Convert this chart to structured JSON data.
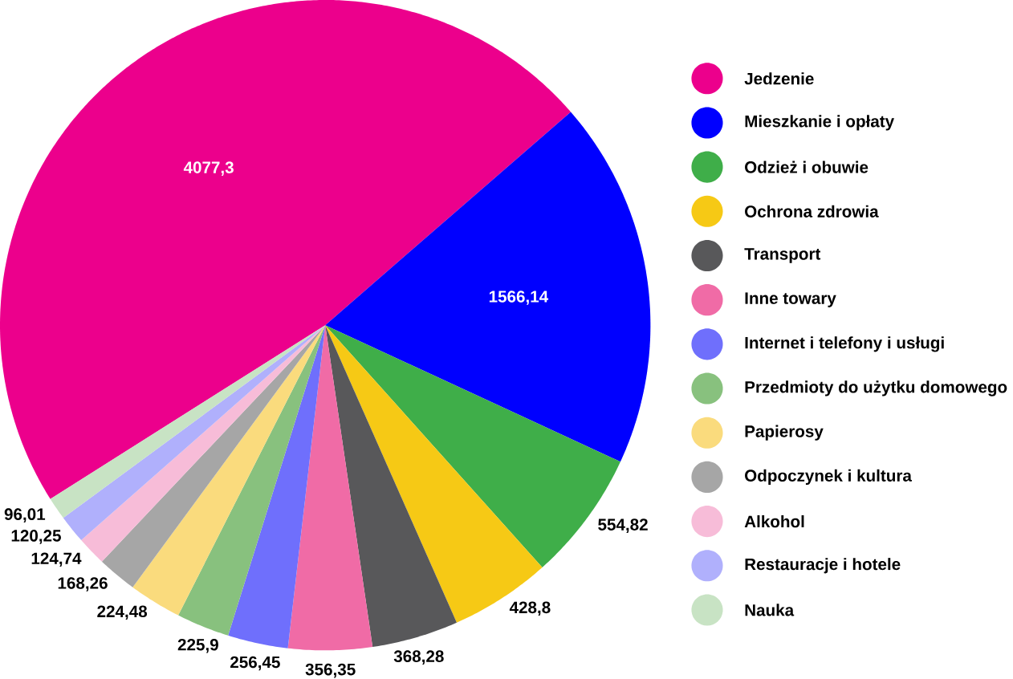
{
  "chart_data": {
    "type": "pie",
    "legend": "right",
    "categories": [
      "Jedzenie",
      "Mieszkanie i opłaty",
      "Odzież i obuwie",
      "Ochrona zdrowia",
      "Transport",
      "Inne towary",
      "Internet i telefony i usługi",
      "Przedmioty do użytku domowego",
      "Papierosy",
      "Odpoczynek i kultura",
      "Alkohol",
      "Restauracje i hotele",
      "Nauka"
    ],
    "values": [
      4077.3,
      1566.14,
      554.82,
      428.8,
      368.28,
      356.35,
      256.45,
      225.9,
      224.48,
      168.26,
      124.74,
      120.25,
      96.01
    ],
    "value_labels": [
      "4077,3",
      "1566,14",
      "554,82",
      "428,8",
      "368,28",
      "356,35",
      "256,45",
      "225,9",
      "224,48",
      "168,26",
      "124,74",
      "120,25",
      "96,01"
    ],
    "colors": [
      "#ec008c",
      "#0000ff",
      "#3fae49",
      "#f6c915",
      "#58585a",
      "#f06ba6",
      "#6f6ffc",
      "#88c17e",
      "#fadb7d",
      "#a6a6a6",
      "#f7bcd8",
      "#b0b0fc",
      "#c8e3c4"
    ]
  }
}
